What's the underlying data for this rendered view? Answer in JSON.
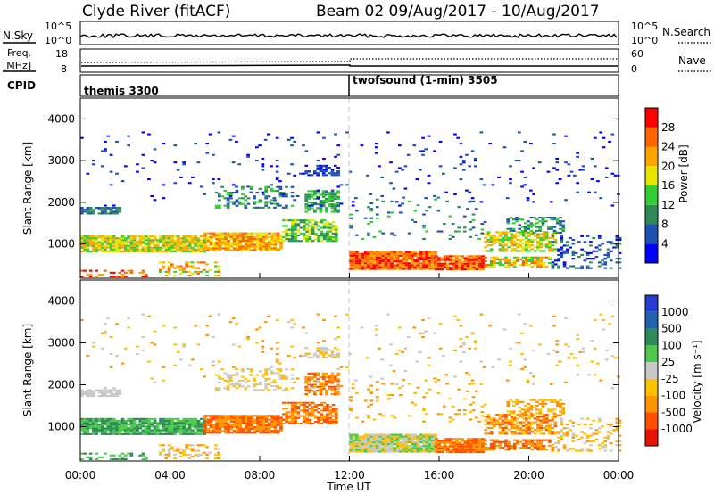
{
  "header": {
    "title": "Clyde River (fitACF)",
    "beam_info": "Beam 02  09/Aug/2017 - 10/Aug/2017"
  },
  "strip_nsky": {
    "left_label": "N.Sky",
    "right_label": "N.Search",
    "left_ticks": [
      "10^5",
      "10^0"
    ],
    "right_ticks": [
      "10^5",
      "10^0"
    ]
  },
  "strip_freq": {
    "left_label_1": "Freq.",
    "left_label_2": "[MHz]",
    "right_label": "Nave",
    "left_ticks": [
      "18",
      "8"
    ],
    "right_ticks": [
      "60",
      "0"
    ]
  },
  "strip_cpid": {
    "left_label": "CPID",
    "program_1": "themis 3300",
    "program_2": "twofsound (1-min) 3505"
  },
  "colors": {
    "power_scale": [
      "#0000ff",
      "#1e50b4",
      "#2e8b57",
      "#32cd32",
      "#e6e600",
      "#ffa500",
      "#ff6400",
      "#ff0000"
    ],
    "velocity_scale": [
      "#2a3ccf",
      "#1e62b0",
      "#2e8b57",
      "#4cc84c",
      "#c8c8c8",
      "#ffc000",
      "#ff9500",
      "#ff5000",
      "#e61400"
    ]
  },
  "chart_data": [
    {
      "type": "heatmap",
      "title": "Power",
      "ylabel": "Slant Range [km]",
      "ylim": [
        180,
        4500
      ],
      "y_ticks": [
        "1000",
        "2000",
        "3000",
        "4000"
      ],
      "x_ticks": [
        "00:00",
        "04:00",
        "08:00",
        "12:00",
        "16:00",
        "20:00",
        "00:00"
      ],
      "colorbar_label": "Power [dB]",
      "colorbar_ticks": [
        "4",
        "8",
        "12",
        "16",
        "20",
        "24",
        "28"
      ],
      "clim": [
        0,
        32
      ]
    },
    {
      "type": "heatmap",
      "title": "Velocity",
      "ylabel": "Slant Range [km]",
      "ylim": [
        180,
        4500
      ],
      "y_ticks": [
        "1000",
        "2000",
        "3000",
        "4000"
      ],
      "x_ticks": [
        "00:00",
        "04:00",
        "08:00",
        "12:00",
        "16:00",
        "20:00",
        "00:00"
      ],
      "xlabel": "Time UT",
      "colorbar_label": "Velocity [m s⁻¹]",
      "colorbar_ticks": [
        "1000",
        "500",
        "100",
        "25",
        "-25",
        "-100",
        "-500",
        "-1000"
      ]
    }
  ]
}
